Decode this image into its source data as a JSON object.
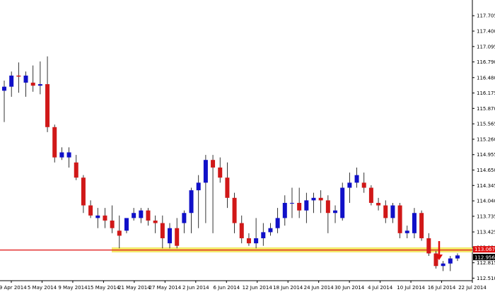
{
  "chart_data": {
    "type": "candlestick",
    "colors": {
      "up": "#1010c8",
      "down": "#d01818",
      "wick": "#000000",
      "resistance_line": "#e01010",
      "support_zone": "#f2e65a",
      "arrow": "#e01010"
    },
    "y_ticks": [
      "117.705",
      "117.400",
      "117.095",
      "116.790",
      "116.480",
      "116.175",
      "115.870",
      "115.565",
      "115.260",
      "114.955",
      "114.650",
      "114.345",
      "114.040",
      "113.735",
      "113.425",
      "113.120",
      "112.815",
      "112.510"
    ],
    "x_ticks": [
      "29 Apr 2014",
      "5 May 2014",
      "9 May 2014",
      "15 May 2014",
      "21 May 2014",
      "27 May 2014",
      "2 Jun 2014",
      "6 Jun 2014",
      "12 Jun 2014",
      "18 Jun 2014",
      "24 Jun 2014",
      "30 Jun 2014",
      "4 Jul 2014",
      "10 Jul 2014",
      "16 Jul 2014",
      "22 Jul 2014"
    ],
    "ylim": [
      112.46,
      117.96
    ],
    "horizontal_line": {
      "value": 113.067,
      "label": "113.067"
    },
    "current_price": {
      "value": 112.956,
      "label": "112.956"
    },
    "support_zone": [
      113.02,
      113.12
    ],
    "candles": [
      {
        "o": 116.22,
        "h": 116.42,
        "l": 115.6,
        "c": 116.3
      },
      {
        "o": 116.3,
        "h": 116.6,
        "l": 116.1,
        "c": 116.52
      },
      {
        "o": 116.52,
        "h": 116.78,
        "l": 116.18,
        "c": 116.5
      },
      {
        "o": 116.38,
        "h": 116.6,
        "l": 116.1,
        "c": 116.52
      },
      {
        "o": 116.38,
        "h": 116.72,
        "l": 116.2,
        "c": 116.32
      },
      {
        "o": 116.32,
        "h": 116.8,
        "l": 116.15,
        "c": 116.35
      },
      {
        "o": 116.35,
        "h": 116.9,
        "l": 115.4,
        "c": 115.5
      },
      {
        "o": 115.5,
        "h": 115.55,
        "l": 114.8,
        "c": 114.9
      },
      {
        "o": 114.9,
        "h": 115.1,
        "l": 114.85,
        "c": 115.0
      },
      {
        "o": 114.9,
        "h": 115.1,
        "l": 114.7,
        "c": 115.0
      },
      {
        "o": 114.8,
        "h": 114.95,
        "l": 114.45,
        "c": 114.5
      },
      {
        "o": 114.5,
        "h": 114.55,
        "l": 113.8,
        "c": 113.95
      },
      {
        "o": 113.95,
        "h": 114.05,
        "l": 113.7,
        "c": 113.75
      },
      {
        "o": 113.7,
        "h": 113.9,
        "l": 113.5,
        "c": 113.75
      },
      {
        "o": 113.75,
        "h": 113.9,
        "l": 113.5,
        "c": 113.65
      },
      {
        "o": 113.65,
        "h": 113.95,
        "l": 113.4,
        "c": 113.5
      },
      {
        "o": 113.45,
        "h": 113.75,
        "l": 113.1,
        "c": 113.35
      },
      {
        "o": 113.45,
        "h": 113.65,
        "l": 113.4,
        "c": 113.7
      },
      {
        "o": 113.7,
        "h": 113.9,
        "l": 113.65,
        "c": 113.8
      },
      {
        "o": 113.7,
        "h": 113.9,
        "l": 113.6,
        "c": 113.85
      },
      {
        "o": 113.85,
        "h": 113.9,
        "l": 113.55,
        "c": 113.65
      },
      {
        "o": 113.65,
        "h": 113.75,
        "l": 113.4,
        "c": 113.6
      },
      {
        "o": 113.6,
        "h": 113.75,
        "l": 113.1,
        "c": 113.3
      },
      {
        "o": 113.2,
        "h": 113.6,
        "l": 113.1,
        "c": 113.5
      },
      {
        "o": 113.5,
        "h": 113.7,
        "l": 113.1,
        "c": 113.15
      },
      {
        "o": 113.6,
        "h": 113.85,
        "l": 113.4,
        "c": 113.8
      },
      {
        "o": 113.8,
        "h": 114.3,
        "l": 113.4,
        "c": 114.25
      },
      {
        "o": 114.25,
        "h": 114.55,
        "l": 113.5,
        "c": 114.4
      },
      {
        "o": 114.4,
        "h": 114.95,
        "l": 113.6,
        "c": 114.85
      },
      {
        "o": 114.85,
        "h": 114.95,
        "l": 113.4,
        "c": 114.7
      },
      {
        "o": 114.7,
        "h": 114.9,
        "l": 114.4,
        "c": 114.5
      },
      {
        "o": 114.5,
        "h": 114.8,
        "l": 113.9,
        "c": 114.1
      },
      {
        "o": 114.1,
        "h": 114.2,
        "l": 113.4,
        "c": 113.6
      },
      {
        "o": 113.6,
        "h": 113.75,
        "l": 113.2,
        "c": 113.3
      },
      {
        "o": 113.3,
        "h": 113.4,
        "l": 113.15,
        "c": 113.2
      },
      {
        "o": 113.2,
        "h": 113.7,
        "l": 113.1,
        "c": 113.3
      },
      {
        "o": 113.3,
        "h": 113.6,
        "l": 113.15,
        "c": 113.42
      },
      {
        "o": 113.42,
        "h": 113.6,
        "l": 113.35,
        "c": 113.5
      },
      {
        "o": 113.5,
        "h": 113.9,
        "l": 113.4,
        "c": 113.7
      },
      {
        "o": 113.7,
        "h": 114.15,
        "l": 113.55,
        "c": 114.0
      },
      {
        "o": 114.0,
        "h": 114.3,
        "l": 113.7,
        "c": 114.0
      },
      {
        "o": 114.0,
        "h": 114.3,
        "l": 113.7,
        "c": 113.85
      },
      {
        "o": 113.85,
        "h": 114.2,
        "l": 113.6,
        "c": 114.05
      },
      {
        "o": 114.05,
        "h": 114.2,
        "l": 113.8,
        "c": 114.1
      },
      {
        "o": 114.1,
        "h": 114.25,
        "l": 113.8,
        "c": 114.05
      },
      {
        "o": 114.05,
        "h": 114.15,
        "l": 113.4,
        "c": 113.8
      },
      {
        "o": 113.8,
        "h": 113.95,
        "l": 113.6,
        "c": 113.85
      },
      {
        "o": 113.7,
        "h": 114.4,
        "l": 113.65,
        "c": 114.3
      },
      {
        "o": 114.3,
        "h": 114.6,
        "l": 114.0,
        "c": 114.4
      },
      {
        "o": 114.4,
        "h": 114.7,
        "l": 114.3,
        "c": 114.55
      },
      {
        "o": 114.4,
        "h": 114.6,
        "l": 114.2,
        "c": 114.3
      },
      {
        "o": 114.3,
        "h": 114.35,
        "l": 113.95,
        "c": 114.0
      },
      {
        "o": 114.0,
        "h": 114.1,
        "l": 113.85,
        "c": 113.95
      },
      {
        "o": 113.95,
        "h": 114.05,
        "l": 113.6,
        "c": 113.7
      },
      {
        "o": 113.7,
        "h": 114.0,
        "l": 113.6,
        "c": 113.95
      },
      {
        "o": 113.95,
        "h": 114.0,
        "l": 113.3,
        "c": 113.4
      },
      {
        "o": 113.4,
        "h": 113.55,
        "l": 113.3,
        "c": 113.45
      },
      {
        "o": 113.4,
        "h": 113.9,
        "l": 113.3,
        "c": 113.8
      },
      {
        "o": 113.8,
        "h": 113.85,
        "l": 113.25,
        "c": 113.3
      },
      {
        "o": 113.3,
        "h": 113.4,
        "l": 112.95,
        "c": 113.0
      },
      {
        "o": 113.0,
        "h": 113.05,
        "l": 112.7,
        "c": 112.75
      },
      {
        "o": 112.75,
        "h": 112.85,
        "l": 112.65,
        "c": 112.8
      },
      {
        "o": 112.8,
        "h": 112.95,
        "l": 112.65,
        "c": 112.9
      },
      {
        "o": 112.9,
        "h": 113.0,
        "l": 112.85,
        "c": 112.96
      }
    ]
  }
}
